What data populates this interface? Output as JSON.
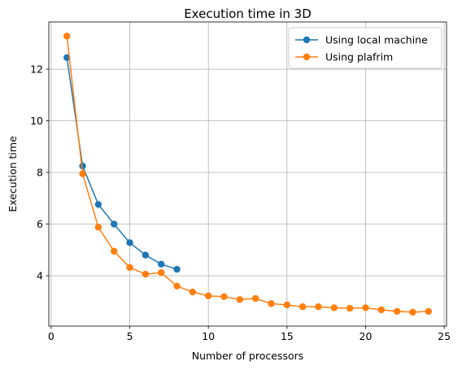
{
  "chart_data": {
    "type": "line",
    "title": "Execution time in 3D",
    "xlabel": "Number of processors",
    "ylabel": "Execution time",
    "xlim": [
      -0.15,
      25.15
    ],
    "ylim": [
      2.05,
      13.83
    ],
    "xticks": [
      0,
      5,
      10,
      15,
      20,
      25
    ],
    "yticks": [
      4,
      6,
      8,
      10,
      12
    ],
    "grid": true,
    "legend_position": "top-right",
    "series": [
      {
        "name": "Using local machine",
        "color": "#1f77b4",
        "marker": "circle",
        "x": [
          1,
          2,
          3,
          4,
          5,
          6,
          7,
          8
        ],
        "y": [
          12.45,
          8.25,
          6.76,
          6.0,
          5.28,
          4.8,
          4.45,
          4.25
        ]
      },
      {
        "name": "Using plafrim",
        "color": "#ff7f0e",
        "marker": "circle",
        "x": [
          1,
          2,
          3,
          4,
          5,
          6,
          7,
          8,
          9,
          10,
          11,
          12,
          13,
          14,
          15,
          16,
          17,
          18,
          19,
          20,
          21,
          22,
          23,
          24
        ],
        "y": [
          13.28,
          7.95,
          5.88,
          4.95,
          4.32,
          4.06,
          4.12,
          3.6,
          3.37,
          3.22,
          3.19,
          3.08,
          3.12,
          2.92,
          2.87,
          2.8,
          2.8,
          2.76,
          2.74,
          2.76,
          2.68,
          2.62,
          2.59,
          2.62
        ]
      }
    ]
  }
}
